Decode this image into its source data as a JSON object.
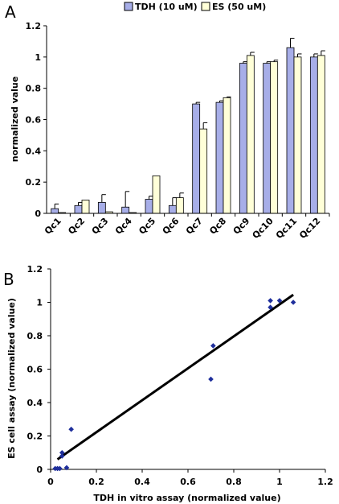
{
  "panels": {
    "a_label": "A",
    "b_label": "B"
  },
  "chart_data": [
    {
      "type": "bar",
      "categories": [
        "Qc1",
        "Qc2",
        "Qc3",
        "Qc4",
        "Qc5",
        "Qc6",
        "Qc7",
        "Qc8",
        "Qc9",
        "Qc10",
        "Qc11",
        "Qc12"
      ],
      "series": [
        {
          "name": "TDH (10 uM)",
          "color": "#a7aee8",
          "values": [
            0.03,
            0.05,
            0.07,
            0.04,
            0.09,
            0.05,
            0.7,
            0.71,
            0.96,
            0.96,
            1.06,
            1.0
          ],
          "errors": [
            0.03,
            0.02,
            0.05,
            0.1,
            0.02,
            0.05,
            0.01,
            0.01,
            0.01,
            0.01,
            0.06,
            0.02
          ]
        },
        {
          "name": "ES (50 uM)",
          "color": "#ffffd8",
          "values": [
            0.005,
            0.085,
            0.01,
            0.005,
            0.24,
            0.1,
            0.54,
            0.74,
            1.01,
            0.97,
            1.0,
            1.01
          ],
          "errors": [
            0.0,
            0.0,
            0.0,
            0.0,
            0.0,
            0.03,
            0.04,
            0.005,
            0.02,
            0.01,
            0.02,
            0.03
          ]
        }
      ],
      "xlabel": "",
      "ylabel": "normalized value",
      "ylim": [
        0,
        1.2
      ],
      "yticks": [
        "0",
        "0.2",
        "0.4",
        "0.6",
        "0.8",
        "1",
        "1.2"
      ],
      "grid": false,
      "legend_position": "top"
    },
    {
      "type": "scatter",
      "points": [
        {
          "x": 0.02,
          "y": 0.005
        },
        {
          "x": 0.03,
          "y": 0.005
        },
        {
          "x": 0.04,
          "y": 0.005
        },
        {
          "x": 0.07,
          "y": 0.01
        },
        {
          "x": 0.05,
          "y": 0.08
        },
        {
          "x": 0.05,
          "y": 0.1
        },
        {
          "x": 0.09,
          "y": 0.24
        },
        {
          "x": 0.7,
          "y": 0.54
        },
        {
          "x": 0.71,
          "y": 0.74
        },
        {
          "x": 0.96,
          "y": 0.97
        },
        {
          "x": 0.96,
          "y": 1.01
        },
        {
          "x": 1.0,
          "y": 1.01
        },
        {
          "x": 1.06,
          "y": 1.0
        }
      ],
      "point_color": "#1f2f9c",
      "trendline": {
        "x0": 0.03,
        "y0": 0.06,
        "x1": 1.06,
        "y1": 1.045
      },
      "xlabel": "TDH in vitro assay (normalized value)",
      "ylabel": "ES cell assay (normalized value)",
      "xlim": [
        0,
        1.2
      ],
      "ylim": [
        0,
        1.2
      ],
      "xticks": [
        "0",
        "0.2",
        "0.4",
        "0.6",
        "0.8",
        "1",
        "1.2"
      ],
      "yticks": [
        "0",
        "0.2",
        "0.4",
        "0.6",
        "0.8",
        "1",
        "1.2"
      ],
      "grid": false
    }
  ]
}
